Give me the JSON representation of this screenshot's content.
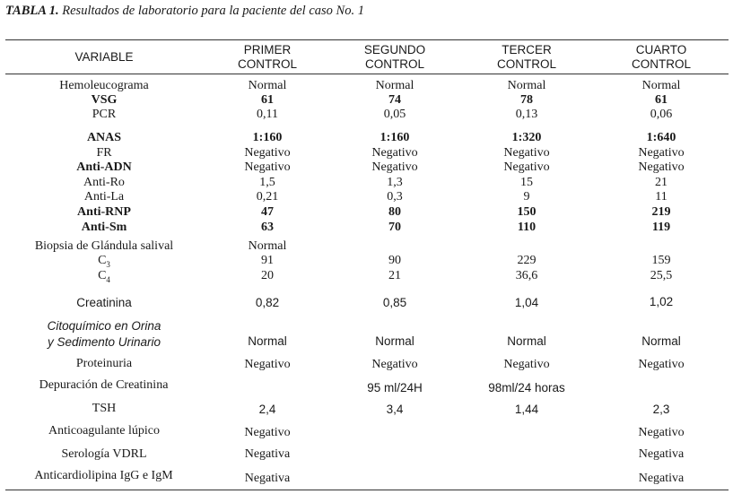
{
  "caption": {
    "label": "TABLA 1.",
    "text": " Resultados de laboratorio para la paciente del caso No. 1"
  },
  "header": {
    "variable": "VARIABLE",
    "col1": [
      "PRIMER",
      "CONTROL"
    ],
    "col2": [
      "SEGUNDO",
      "CONTROL"
    ],
    "col3": [
      "TERCER",
      "CONTROL"
    ],
    "col4": [
      "CUARTO",
      "CONTROL"
    ]
  },
  "rows": [
    {
      "label": "Hemoleucograma",
      "v": [
        "Normal",
        "Normal",
        "Normal",
        "Normal"
      ]
    },
    {
      "label": "VSG",
      "v": [
        "61",
        "74",
        "78",
        "61"
      ]
    },
    {
      "label": "PCR",
      "v": [
        "0,11",
        "0,05",
        "0,13",
        "0,06"
      ]
    },
    {
      "label": "ANAS",
      "v": [
        "1:160",
        "1:160",
        "1:320",
        "1:640"
      ]
    },
    {
      "label": "FR",
      "v": [
        "Negativo",
        "Negativo",
        "Negativo",
        "Negativo"
      ]
    },
    {
      "label": "Anti-ADN",
      "v": [
        "Negativo",
        "Negativo",
        "Negativo",
        "Negativo"
      ]
    },
    {
      "label": "Anti-Ro",
      "v": [
        "1,5",
        "1,3",
        "15",
        "21"
      ]
    },
    {
      "label": "Anti-La",
      "v": [
        "0,21",
        "0,3",
        "9",
        "11"
      ]
    },
    {
      "label": "Anti-RNP",
      "v": [
        "47",
        "80",
        "150",
        "219"
      ]
    },
    {
      "label": "Anti-Sm",
      "v": [
        "63",
        "70",
        "110",
        "119"
      ]
    },
    {
      "label": "Biopsia de Glándula salival",
      "v": [
        "Normal",
        "",
        "",
        ""
      ]
    },
    {
      "label": "C",
      "sub": "3",
      "v": [
        "91",
        "90",
        "229",
        "159"
      ]
    },
    {
      "label": "C",
      "sub": "4",
      "v": [
        "20",
        "21",
        "36,6",
        "25,5"
      ]
    },
    {
      "label": "Creatinina",
      "v": [
        "0,82",
        "0,85",
        "1,04",
        "1,02"
      ]
    },
    {
      "label": [
        "Citoquímico en Orina",
        "y Sedimento Urinario"
      ],
      "v": [
        "Normal",
        "Normal",
        "Normal",
        "Normal"
      ]
    },
    {
      "label": "Proteinuria",
      "v": [
        "Negativo",
        "Negativo",
        "Negativo",
        "Negativo"
      ]
    },
    {
      "label": "Depuración de Creatinina",
      "v": [
        "",
        "95 ml/24H",
        "98ml/24 horas",
        ""
      ]
    },
    {
      "label": "TSH",
      "v": [
        "2,4",
        "3,4",
        "1,44",
        "2,3"
      ]
    },
    {
      "label": "Anticoagulante lúpico",
      "v": [
        "Negativo",
        "",
        "",
        "Negativo"
      ]
    },
    {
      "label": "Serología VDRL",
      "v": [
        "Negativa",
        "",
        "",
        "Negativa"
      ]
    },
    {
      "label": "Anticardiolipina IgG e IgM",
      "v": [
        "Negativa",
        "",
        "",
        "Negativa"
      ]
    }
  ]
}
